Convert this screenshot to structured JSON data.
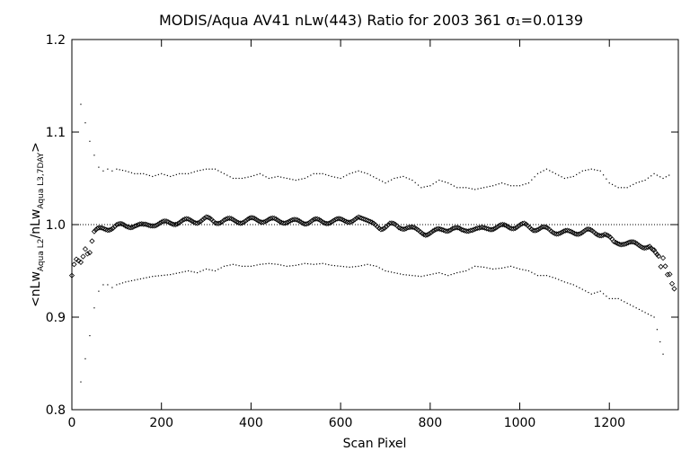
{
  "chart_data": {
    "type": "scatter",
    "title": "MODIS/Aqua AV41 nLw(443) Ratio for 2003 361 σ₁=0.0139",
    "xlabel": "Scan Pixel",
    "ylabel": {
      "open": "<nLw",
      "sub1": "Aqua L2",
      "mid": "/nLw",
      "sub2": "Aqua L3,7DAY",
      "close": ">"
    },
    "xlim": [
      0,
      1354
    ],
    "ylim": [
      0.8,
      1.2
    ],
    "xticks": [
      0,
      200,
      400,
      600,
      800,
      1000,
      1200
    ],
    "yticks": [
      0.8,
      0.9,
      1.0,
      1.1,
      1.2
    ],
    "ytick_labels": [
      "0.8",
      "0.9",
      "1.0",
      "1.1",
      "1.2"
    ],
    "reference_line": 1.0,
    "grid": false,
    "series": [
      {
        "role": "mean",
        "marker": "diamond",
        "x": [
          0,
          5,
          10,
          15,
          20,
          25,
          30,
          35,
          40,
          45,
          50,
          60,
          80,
          100,
          120,
          140,
          160,
          180,
          200,
          220,
          240,
          260,
          280,
          300,
          320,
          340,
          360,
          380,
          400,
          420,
          440,
          460,
          480,
          500,
          520,
          540,
          560,
          580,
          600,
          620,
          640,
          655,
          670,
          690,
          710,
          730,
          750,
          770,
          790,
          810,
          830,
          850,
          870,
          890,
          910,
          930,
          950,
          970,
          990,
          1010,
          1030,
          1050,
          1070,
          1090,
          1110,
          1130,
          1150,
          1170,
          1190,
          1210,
          1230,
          1250,
          1270,
          1290,
          1300,
          1310,
          1315,
          1320,
          1325,
          1330,
          1335,
          1340,
          1345,
          1350
        ],
        "y": [
          0.945,
          0.955,
          0.965,
          0.96,
          0.958,
          0.968,
          0.972,
          0.968,
          0.972,
          0.98,
          0.993,
          0.994,
          0.996,
          0.999,
          0.998,
          1.0,
          0.998,
          1.001,
          1.001,
          1.002,
          1.003,
          1.004,
          1.004,
          1.006,
          1.003,
          1.005,
          1.004,
          1.004,
          1.005,
          1.005,
          1.005,
          1.004,
          1.004,
          1.003,
          1.003,
          1.004,
          1.003,
          1.004,
          1.004,
          1.005,
          1.006,
          1.003,
          1.0,
          0.997,
          1.0,
          0.997,
          0.998,
          0.993,
          0.991,
          0.992,
          0.995,
          0.996,
          0.993,
          0.996,
          0.994,
          0.997,
          0.997,
          0.998,
          0.998,
          0.999,
          0.996,
          0.996,
          0.993,
          0.992,
          0.991,
          0.992,
          0.993,
          0.991,
          0.99,
          0.98,
          0.981,
          0.979,
          0.978,
          0.976,
          0.975,
          0.965,
          0.957,
          0.962,
          0.955,
          0.948,
          0.944,
          0.937,
          0.932,
          0.935
        ]
      },
      {
        "role": "upper",
        "marker": "dot",
        "x": [
          20,
          30,
          40,
          50,
          60,
          70,
          80,
          90,
          100,
          120,
          140,
          160,
          180,
          200,
          220,
          240,
          260,
          280,
          300,
          320,
          340,
          360,
          380,
          400,
          420,
          440,
          460,
          480,
          500,
          520,
          540,
          560,
          580,
          600,
          620,
          640,
          660,
          680,
          700,
          720,
          740,
          760,
          780,
          800,
          820,
          840,
          860,
          880,
          900,
          920,
          940,
          960,
          980,
          1000,
          1020,
          1040,
          1060,
          1080,
          1100,
          1120,
          1140,
          1160,
          1180,
          1200,
          1220,
          1240,
          1260,
          1280,
          1300,
          1320,
          1340
        ],
        "y": [
          1.13,
          1.11,
          1.09,
          1.075,
          1.062,
          1.058,
          1.06,
          1.058,
          1.06,
          1.058,
          1.055,
          1.055,
          1.052,
          1.055,
          1.052,
          1.055,
          1.055,
          1.058,
          1.06,
          1.06,
          1.055,
          1.05,
          1.05,
          1.052,
          1.055,
          1.05,
          1.052,
          1.05,
          1.048,
          1.05,
          1.055,
          1.055,
          1.052,
          1.05,
          1.055,
          1.058,
          1.055,
          1.05,
          1.045,
          1.05,
          1.052,
          1.048,
          1.04,
          1.042,
          1.048,
          1.045,
          1.04,
          1.04,
          1.038,
          1.04,
          1.042,
          1.045,
          1.042,
          1.042,
          1.045,
          1.055,
          1.06,
          1.055,
          1.05,
          1.052,
          1.058,
          1.06,
          1.058,
          1.045,
          1.04,
          1.04,
          1.045,
          1.048,
          1.055,
          1.05,
          1.055
        ]
      },
      {
        "role": "lower",
        "marker": "dot",
        "x": [
          20,
          30,
          40,
          50,
          60,
          70,
          80,
          90,
          100,
          120,
          140,
          160,
          180,
          200,
          220,
          240,
          260,
          280,
          300,
          320,
          340,
          360,
          380,
          400,
          420,
          440,
          460,
          480,
          500,
          520,
          540,
          560,
          580,
          600,
          620,
          640,
          660,
          680,
          700,
          720,
          740,
          760,
          780,
          800,
          820,
          840,
          860,
          880,
          900,
          920,
          940,
          960,
          980,
          1000,
          1020,
          1040,
          1060,
          1080,
          1100,
          1120,
          1140,
          1160,
          1180,
          1200,
          1220,
          1240,
          1260,
          1280,
          1300,
          1320,
          1330
        ],
        "y": [
          0.83,
          0.855,
          0.88,
          0.91,
          0.928,
          0.935,
          0.935,
          0.932,
          0.935,
          0.938,
          0.94,
          0.942,
          0.944,
          0.945,
          0.946,
          0.948,
          0.95,
          0.948,
          0.952,
          0.95,
          0.955,
          0.957,
          0.955,
          0.955,
          0.957,
          0.958,
          0.957,
          0.955,
          0.956,
          0.958,
          0.957,
          0.958,
          0.956,
          0.955,
          0.954,
          0.955,
          0.957,
          0.955,
          0.95,
          0.948,
          0.946,
          0.945,
          0.944,
          0.946,
          0.948,
          0.945,
          0.948,
          0.95,
          0.955,
          0.954,
          0.952,
          0.953,
          0.955,
          0.952,
          0.95,
          0.945,
          0.945,
          0.942,
          0.938,
          0.935,
          0.93,
          0.925,
          0.928,
          0.92,
          0.92,
          0.915,
          0.91,
          0.905,
          0.9,
          0.86,
          0.862
        ]
      }
    ]
  }
}
